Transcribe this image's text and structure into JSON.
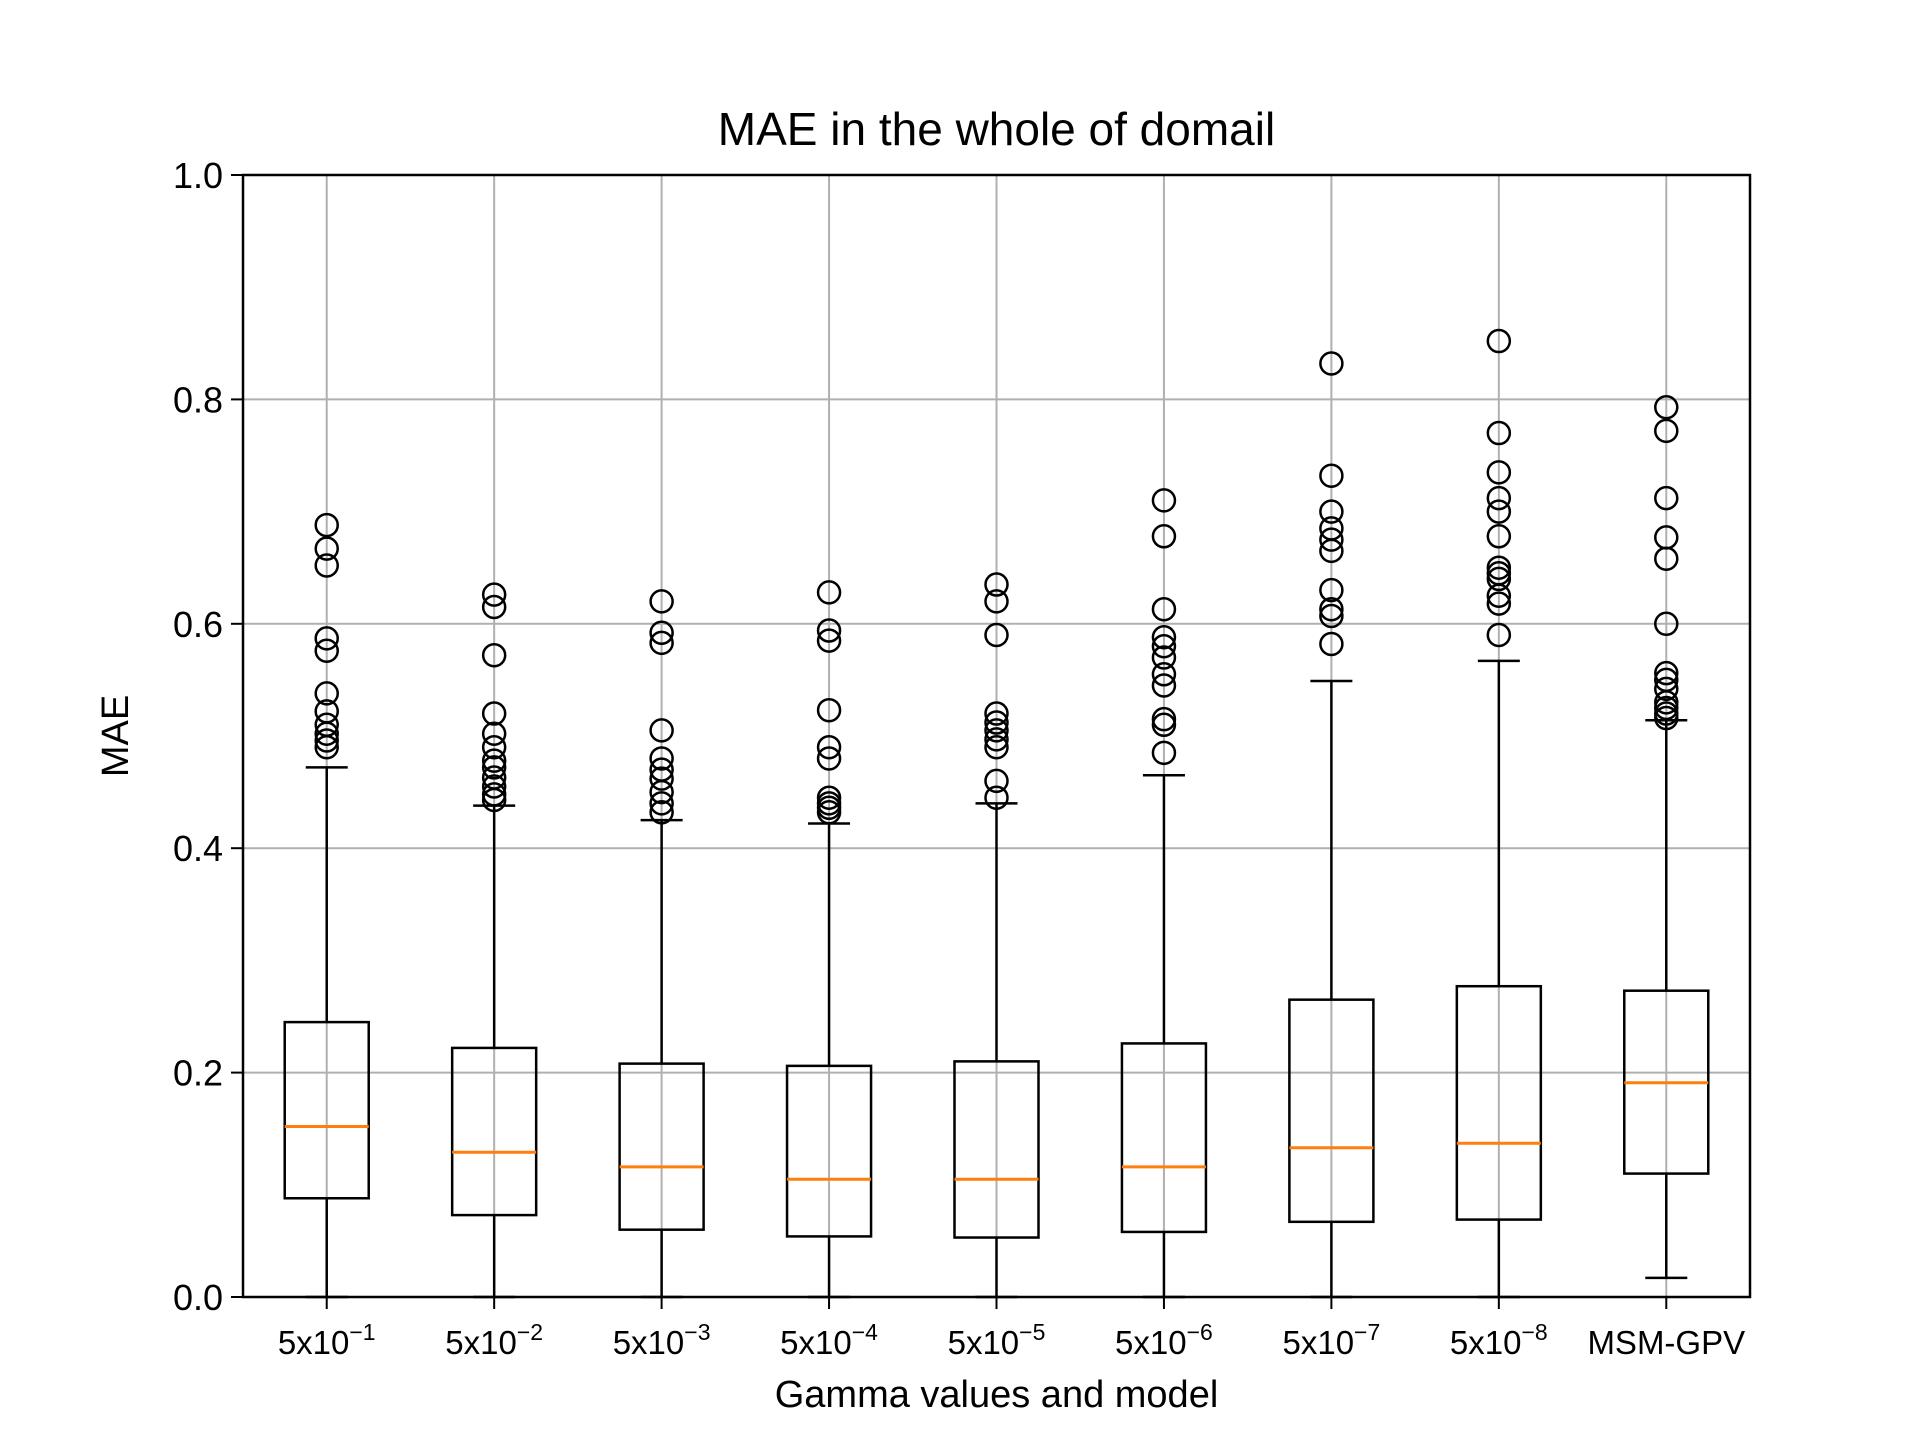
{
  "chart_data": {
    "type": "box",
    "title": "MAE in the whole of domail",
    "xlabel": "Gamma values and model",
    "ylabel": "MAE",
    "ylim": [
      0.0,
      1.0
    ],
    "yticks": [
      "0.0",
      "0.2",
      "0.4",
      "0.6",
      "0.8",
      "1.0"
    ],
    "grid": true,
    "colors": {
      "box": "#000000",
      "median": "#ff7f0e",
      "grid": "#b0b0b0"
    },
    "categories": [
      {
        "base": "5x10",
        "exp": "−1"
      },
      {
        "base": "5x10",
        "exp": "−2"
      },
      {
        "base": "5x10",
        "exp": "−3"
      },
      {
        "base": "5x10",
        "exp": "−4"
      },
      {
        "base": "5x10",
        "exp": "−5"
      },
      {
        "base": "5x10",
        "exp": "−6"
      },
      {
        "base": "5x10",
        "exp": "−7"
      },
      {
        "base": "5x10",
        "exp": "−8"
      },
      {
        "base": "MSM-GPV",
        "exp": ""
      }
    ],
    "boxes": [
      {
        "whisker_low": 0.0,
        "q1": 0.088,
        "median": 0.152,
        "q3": 0.245,
        "whisker_high": 0.472,
        "outliers": [
          0.49,
          0.496,
          0.502,
          0.51,
          0.522,
          0.538,
          0.576,
          0.587,
          0.652,
          0.667,
          0.688
        ]
      },
      {
        "whisker_low": 0.0,
        "q1": 0.073,
        "median": 0.129,
        "q3": 0.222,
        "whisker_high": 0.438,
        "outliers": [
          0.443,
          0.448,
          0.455,
          0.463,
          0.472,
          0.478,
          0.49,
          0.502,
          0.52,
          0.572,
          0.615,
          0.626
        ]
      },
      {
        "whisker_low": 0.0,
        "q1": 0.06,
        "median": 0.116,
        "q3": 0.208,
        "whisker_high": 0.425,
        "outliers": [
          0.432,
          0.44,
          0.45,
          0.462,
          0.47,
          0.48,
          0.505,
          0.583,
          0.592,
          0.62
        ]
      },
      {
        "whisker_low": 0.0,
        "q1": 0.054,
        "median": 0.105,
        "q3": 0.206,
        "whisker_high": 0.422,
        "outliers": [
          0.432,
          0.436,
          0.44,
          0.445,
          0.48,
          0.49,
          0.523,
          0.585,
          0.594,
          0.628
        ]
      },
      {
        "whisker_low": 0.0,
        "q1": 0.053,
        "median": 0.105,
        "q3": 0.21,
        "whisker_high": 0.44,
        "outliers": [
          0.445,
          0.46,
          0.49,
          0.497,
          0.505,
          0.512,
          0.52,
          0.59,
          0.62,
          0.635
        ]
      },
      {
        "whisker_low": 0.0,
        "q1": 0.058,
        "median": 0.116,
        "q3": 0.226,
        "whisker_high": 0.465,
        "outliers": [
          0.485,
          0.51,
          0.515,
          0.545,
          0.555,
          0.57,
          0.58,
          0.588,
          0.613,
          0.678,
          0.71
        ]
      },
      {
        "whisker_low": 0.0,
        "q1": 0.067,
        "median": 0.133,
        "q3": 0.265,
        "whisker_high": 0.549,
        "outliers": [
          0.582,
          0.607,
          0.613,
          0.63,
          0.665,
          0.675,
          0.685,
          0.7,
          0.732,
          0.832
        ]
      },
      {
        "whisker_low": 0.0,
        "q1": 0.069,
        "median": 0.137,
        "q3": 0.277,
        "whisker_high": 0.567,
        "outliers": [
          0.59,
          0.618,
          0.625,
          0.64,
          0.645,
          0.65,
          0.678,
          0.7,
          0.712,
          0.735,
          0.77,
          0.852
        ]
      },
      {
        "whisker_low": 0.017,
        "q1": 0.11,
        "median": 0.191,
        "q3": 0.273,
        "whisker_high": 0.514,
        "outliers": [
          0.516,
          0.52,
          0.525,
          0.53,
          0.542,
          0.55,
          0.556,
          0.6,
          0.658,
          0.677,
          0.712,
          0.772,
          0.793
        ]
      }
    ]
  }
}
